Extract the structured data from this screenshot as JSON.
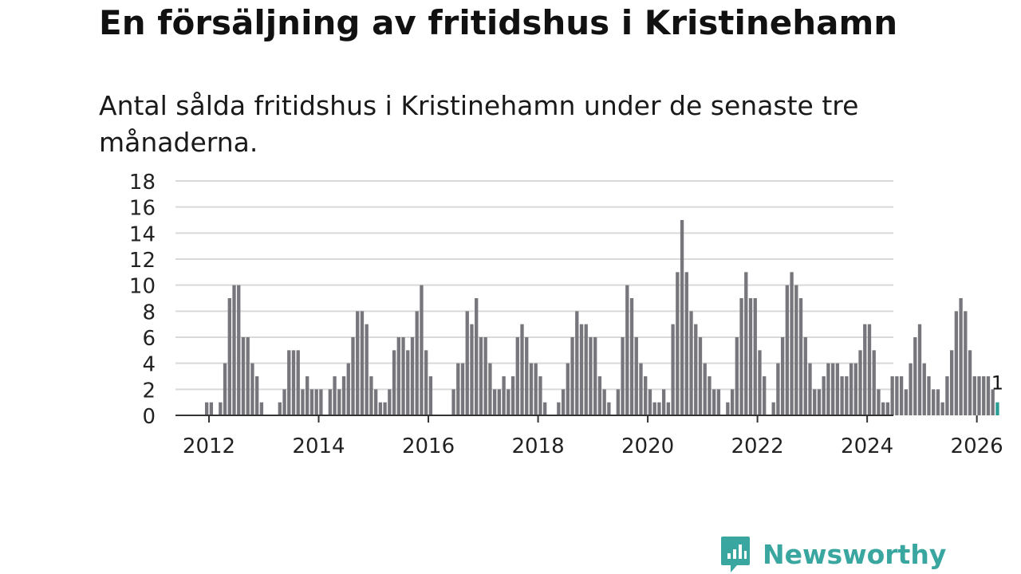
{
  "title": "En försäljning av fritidshus i Kristinehamn",
  "subtitle": "Antal sålda fritidshus i Kristinehamn under de senaste tre månaderna.",
  "brand": {
    "name": "Newsworthy",
    "icon": "newsworthy-logo-icon",
    "color": "#3aa6a0"
  },
  "colors": {
    "bar": "#77767c",
    "highlight": "#2a9d95",
    "grid": "#d9d9d9",
    "axis": "#333333"
  },
  "chart_data": {
    "type": "bar",
    "title": "En försäljning av fritidshus i Kristinehamn",
    "subtitle": "Antal sålda fritidshus i Kristinehamn under de senaste tre månaderna.",
    "xlabel": "",
    "ylabel": "",
    "x_ticks": [
      "2012",
      "2014",
      "2016",
      "2018",
      "2020",
      "2022",
      "2024",
      "2026"
    ],
    "y_ticks": [
      0,
      2,
      4,
      6,
      8,
      10,
      12,
      14,
      16,
      18
    ],
    "ylim": [
      0,
      18
    ],
    "grid": true,
    "start": "2011-05",
    "last_label": "1",
    "values": [
      0,
      0,
      0,
      0,
      0,
      0,
      0,
      1,
      1,
      0,
      1,
      4,
      9,
      10,
      10,
      6,
      6,
      4,
      3,
      1,
      0,
      0,
      0,
      1,
      2,
      5,
      5,
      5,
      2,
      3,
      2,
      2,
      2,
      0,
      2,
      3,
      2,
      3,
      4,
      6,
      8,
      8,
      7,
      3,
      2,
      1,
      1,
      2,
      5,
      6,
      6,
      5,
      6,
      8,
      10,
      5,
      3,
      0,
      0,
      0,
      0,
      2,
      4,
      4,
      8,
      7,
      9,
      6,
      6,
      4,
      2,
      2,
      3,
      2,
      3,
      6,
      7,
      6,
      4,
      4,
      3,
      1,
      0,
      0,
      1,
      2,
      4,
      6,
      8,
      7,
      7,
      6,
      6,
      3,
      2,
      1,
      0,
      2,
      6,
      10,
      9,
      6,
      4,
      3,
      2,
      1,
      1,
      2,
      1,
      7,
      11,
      15,
      11,
      8,
      7,
      6,
      4,
      3,
      2,
      2,
      0,
      1,
      2,
      6,
      9,
      11,
      9,
      9,
      5,
      3,
      0,
      1,
      4,
      6,
      10,
      11,
      10,
      9,
      6,
      4,
      2,
      2,
      3,
      4,
      4,
      4,
      3,
      3,
      4,
      4,
      5,
      7,
      7,
      5,
      2,
      1,
      1,
      3,
      3,
      3,
      2,
      4,
      6,
      7,
      4,
      3,
      2,
      2,
      1,
      3,
      5,
      8,
      9,
      8,
      5,
      3,
      3,
      3,
      3,
      2,
      1
    ]
  }
}
